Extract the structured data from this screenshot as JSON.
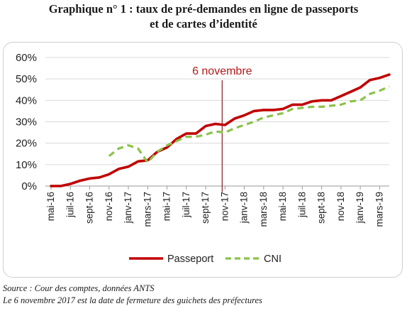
{
  "header": {
    "title_line1": "Graphique n° 1 : taux de pré-demandes en ligne de passeports",
    "title_line2": "et de cartes d’identité"
  },
  "footer": {
    "source": "Source : Cour des comptes, données ANTS",
    "note": "Le 6 novembre 2017 est la date de fermeture des guichets des préfectures"
  },
  "chart_data": {
    "type": "line",
    "title": "Graphique n° 1 : taux de pré-demandes en ligne de passeports et de cartes d’identité",
    "xlabel": "",
    "ylabel": "",
    "ylim": [
      0,
      60
    ],
    "y_ticks": [
      "0%",
      "10%",
      "20%",
      "30%",
      "40%",
      "50%",
      "60%"
    ],
    "y_tick_values": [
      0,
      10,
      20,
      30,
      40,
      50,
      60
    ],
    "x_tick_labels": [
      "mai-16",
      "juil-16",
      "sept-16",
      "nov-16",
      "janv-17",
      "mars-17",
      "mai-17",
      "juil-17",
      "sept-17",
      "nov-17",
      "janv-18",
      "mars-18",
      "mai-18",
      "juil-18",
      "sept-18",
      "nov-18",
      "janv-19",
      "mars-19"
    ],
    "x": [
      "mai-16",
      "juin-16",
      "juil-16",
      "août-16",
      "sept-16",
      "oct-16",
      "nov-16",
      "déc-16",
      "janv-17",
      "févr-17",
      "mars-17",
      "avr-17",
      "mai-17",
      "juin-17",
      "juil-17",
      "août-17",
      "sept-17",
      "oct-17",
      "nov-17",
      "déc-17",
      "janv-18",
      "févr-18",
      "mars-18",
      "avr-18",
      "mai-18",
      "juin-18",
      "juil-18",
      "août-18",
      "sept-18",
      "oct-18",
      "nov-18",
      "déc-18",
      "janv-19",
      "févr-19",
      "mars-19",
      "avr-19"
    ],
    "series": [
      {
        "name": "Passeport",
        "color": "#c00000",
        "style": "solid",
        "values": [
          0,
          0,
          1,
          2.5,
          3.5,
          4,
          5.5,
          8,
          9,
          11.5,
          12,
          16,
          18,
          22,
          24.5,
          24.5,
          28,
          29,
          28.5,
          31.5,
          33,
          35,
          35.5,
          35.5,
          36,
          38,
          38,
          39.5,
          40,
          40,
          42,
          44,
          46,
          49.5,
          50.5,
          52
        ]
      },
      {
        "name": "CNI",
        "color": "#8bc34a",
        "style": "dashed",
        "values": [
          null,
          null,
          null,
          null,
          null,
          null,
          14,
          17.5,
          19,
          17.5,
          11,
          16,
          19,
          21,
          23,
          23,
          24,
          25.5,
          25,
          27,
          28.5,
          30,
          32,
          33,
          34,
          36,
          36.5,
          37,
          37,
          37.5,
          38,
          39.5,
          40,
          43,
          44.5,
          46.5
        ]
      }
    ],
    "annotation": {
      "label": "6 novembre",
      "x": "nov-17",
      "color": "#8b1a1a"
    },
    "grid": true,
    "legend": "bottom"
  }
}
